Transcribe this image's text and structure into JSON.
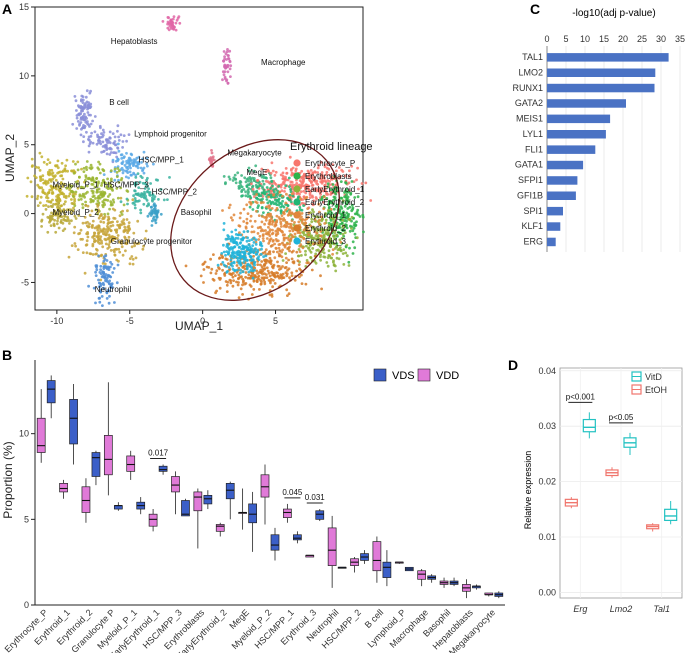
{
  "panels": [
    "A",
    "B",
    "C",
    "D"
  ],
  "chart_data": [
    {
      "type": "scatter",
      "panel": "A",
      "xlabel": "UMAP_1",
      "ylabel": "UMAP_2",
      "xlim": [
        -11.5,
        11
      ],
      "ylim": [
        -7,
        15
      ],
      "xticks": [
        -10,
        -5,
        0,
        5
      ],
      "yticks": [
        -5,
        0,
        5,
        10,
        15
      ],
      "cluster_labels": [
        {
          "text": "Hepatoblasts",
          "x": -6.3,
          "y": 12.3
        },
        {
          "text": "Macrophage",
          "x": 4.0,
          "y": 10.8
        },
        {
          "text": "B cell",
          "x": -6.4,
          "y": 7.9
        },
        {
          "text": "Lymphoid progenitor",
          "x": -4.7,
          "y": 5.6
        },
        {
          "text": "HSC/MPP_1",
          "x": -4.4,
          "y": 3.7
        },
        {
          "text": "Myeloid_P_1",
          "x": -10.3,
          "y": 1.9
        },
        {
          "text": "HSC/MPP_3",
          "x": -6.8,
          "y": 1.9
        },
        {
          "text": "HSC/MPP_2",
          "x": -3.5,
          "y": 1.4
        },
        {
          "text": "Myeloid_P_2",
          "x": -10.3,
          "y": -0.1
        },
        {
          "text": "Basophil",
          "x": -1.5,
          "y": -0.1
        },
        {
          "text": "Granulocyte progenitor",
          "x": -6.3,
          "y": -2.2
        },
        {
          "text": "Neutrophil",
          "x": -7.4,
          "y": -5.7
        },
        {
          "text": "Megakaryocyte",
          "x": 1.7,
          "y": 4.2
        },
        {
          "text": "MegE",
          "x": 3.0,
          "y": 2.8
        }
      ],
      "lineage_label": "Erythroid lineage",
      "legend": [
        "Erythrocyte_P",
        "Erythroblasts",
        "EarlyErythroid_1",
        "EarlyErythroid_2",
        "Erythroid_1",
        "Erythroid_2",
        "Erythroid_3"
      ],
      "legend_colors": [
        "#f8766d",
        "#2db34a",
        "#8db33a",
        "#22b573",
        "#e0873a",
        "#d67b28",
        "#1fb3d9"
      ],
      "clusters": [
        {
          "name": "Hepatoblasts",
          "color": "#e066a6",
          "x": -2.0,
          "y": 13.8,
          "sx": 0.25,
          "sy": 0.25,
          "n": 40
        },
        {
          "name": "Macrophage",
          "color": "#d26ab0",
          "x": 1.7,
          "y": 10.8,
          "sx": 0.15,
          "sy": 0.6,
          "n": 40
        },
        {
          "name": "B cell",
          "color": "#8a8ed8",
          "x": -8.1,
          "y": 7.3,
          "sx": 0.3,
          "sy": 0.7,
          "n": 90
        },
        {
          "name": "Lymphoid progenitor",
          "color": "#8a8ed8",
          "x": -6.5,
          "y": 5.2,
          "sx": 0.7,
          "sy": 0.5,
          "n": 80
        },
        {
          "name": "HSC/MPP_1",
          "color": "#5aa9e6",
          "x": -5.0,
          "y": 3.5,
          "sx": 0.7,
          "sy": 0.5,
          "n": 90
        },
        {
          "name": "Myeloid_P_1",
          "color": "#c3b12e",
          "x": -10.0,
          "y": 2.0,
          "sx": 0.8,
          "sy": 1.0,
          "n": 180
        },
        {
          "name": "HSC/MPP_3",
          "color": "#9ab530",
          "x": -7.2,
          "y": 1.9,
          "sx": 0.9,
          "sy": 0.9,
          "n": 170
        },
        {
          "name": "HSC/MPP_2",
          "color": "#3ab3a0",
          "x": -4.0,
          "y": 1.5,
          "sx": 0.6,
          "sy": 0.6,
          "n": 80
        },
        {
          "name": "Myeloid_P_2",
          "color": "#b8a93a",
          "x": -10.0,
          "y": -0.2,
          "sx": 0.6,
          "sy": 0.5,
          "n": 80
        },
        {
          "name": "Basophil",
          "color": "#3aa0c8",
          "x": -3.3,
          "y": 0.0,
          "sx": 0.2,
          "sy": 0.3,
          "n": 40
        },
        {
          "name": "Granulocyte progenitor",
          "color": "#c7a43a",
          "x": -6.5,
          "y": -1.5,
          "sx": 1.1,
          "sy": 1.1,
          "n": 240
        },
        {
          "name": "Neutrophil",
          "color": "#4f8ed6",
          "x": -6.7,
          "y": -4.5,
          "sx": 0.35,
          "sy": 1.0,
          "n": 90
        },
        {
          "name": "Megakaryocyte",
          "color": "#e2728a",
          "x": 0.6,
          "y": 3.8,
          "sx": 0.1,
          "sy": 0.25,
          "n": 20
        },
        {
          "name": "MegE",
          "color": "#3ab37e",
          "x": 3.3,
          "y": 2.2,
          "sx": 0.8,
          "sy": 0.5,
          "n": 90
        },
        {
          "name": "Erythrocyte_P",
          "color": "#f8766d",
          "x": 7.0,
          "y": 2.2,
          "sx": 1.7,
          "sy": 0.7,
          "n": 320
        },
        {
          "name": "Erythroblasts",
          "color": "#2db34a",
          "x": 9.5,
          "y": 0.0,
          "sx": 0.6,
          "sy": 1.2,
          "n": 200
        },
        {
          "name": "EarlyErythroid_1",
          "color": "#8db33a",
          "x": 8.0,
          "y": -1.8,
          "sx": 1.0,
          "sy": 1.0,
          "n": 240
        },
        {
          "name": "EarlyErythroid_2",
          "color": "#22b573",
          "x": 4.7,
          "y": 1.0,
          "sx": 0.9,
          "sy": 0.6,
          "n": 120
        },
        {
          "name": "Erythroid_1",
          "color": "#e0873a",
          "x": 5.5,
          "y": -1.0,
          "sx": 1.6,
          "sy": 1.0,
          "n": 300
        },
        {
          "name": "Erythroid_2",
          "color": "#d67b28",
          "x": 3.8,
          "y": -4.2,
          "sx": 1.8,
          "sy": 0.8,
          "n": 300
        },
        {
          "name": "Erythroid_3",
          "color": "#1fb3d9",
          "x": 2.7,
          "y": -2.8,
          "sx": 0.7,
          "sy": 0.8,
          "n": 200
        }
      ]
    },
    {
      "type": "box",
      "panel": "B",
      "ylabel": "Proportion (%)",
      "yticks": [
        0,
        5,
        10
      ],
      "ylim": [
        0,
        14.3
      ],
      "legend": [
        "VDS",
        "VDD"
      ],
      "colors": {
        "VDS": "#3b5fc8",
        "VDD": "#e07ad8"
      },
      "categories": [
        "Erythrocyte_P",
        "Erythroid_1",
        "Erythroid_2",
        "Granulocyte P",
        "Myeloid_P_1",
        "EarlyErythroid_1",
        "HSC/MPP_3",
        "Erythroblasts",
        "EarlyErythroid_2",
        "MegE",
        "Myeloid_P_2",
        "HSC/MPP_1",
        "Erythroid_3",
        "Neutrophil",
        "HSC/MPP_2",
        "B cell",
        "Lymphoid_P",
        "Macrophage",
        "Basophil",
        "Hepatoblasts",
        "Megakaryocyte"
      ],
      "annotations": [
        {
          "text": "0.017",
          "category": "EarlyErythroid_1"
        },
        {
          "text": "0.045",
          "category": "HSC/MPP_1"
        },
        {
          "text": "0.031",
          "category": "Erythroid_3"
        }
      ],
      "series": [
        {
          "name": "VDD",
          "boxes": [
            [
              8.3,
              8.9,
              9.3,
              10.9,
              12.6
            ],
            [
              6.2,
              6.6,
              6.8,
              7.1,
              7.3
            ],
            [
              4.8,
              5.4,
              6.1,
              6.9,
              7.4
            ],
            [
              6.4,
              7.6,
              8.5,
              9.9,
              13.0
            ],
            [
              7.3,
              7.8,
              8.2,
              8.7,
              9.0
            ],
            [
              4.3,
              4.6,
              5.0,
              5.3,
              5.6
            ],
            [
              5.3,
              6.6,
              7.0,
              7.5,
              7.8
            ],
            [
              3.3,
              5.5,
              6.3,
              6.6,
              6.8
            ],
            [
              4.0,
              4.3,
              4.6,
              4.7,
              4.8
            ],
            [
              4.4,
              5.4,
              5.4,
              5.4,
              6.8
            ],
            [
              4.7,
              6.3,
              6.9,
              7.6,
              8.2
            ],
            [
              4.8,
              5.1,
              5.4,
              5.6,
              5.9
            ],
            [
              2.8,
              2.8,
              2.9,
              2.9,
              2.9
            ],
            [
              1.0,
              2.3,
              3.2,
              4.5,
              5.2
            ],
            [
              1.9,
              2.3,
              2.5,
              2.7,
              2.8
            ],
            [
              1.3,
              2.0,
              2.6,
              3.7,
              4.0
            ],
            [
              2.4,
              2.5,
              2.5,
              2.5,
              2.5
            ],
            [
              1.1,
              1.5,
              1.8,
              2.0,
              2.1
            ],
            [
              1.0,
              1.2,
              1.3,
              1.4,
              1.6
            ],
            [
              0.4,
              0.8,
              1.0,
              1.2,
              1.5
            ],
            [
              0.5,
              0.6,
              0.6,
              0.7,
              0.7
            ]
          ]
        },
        {
          "name": "VDS",
          "boxes": [
            [
              10.9,
              11.8,
              12.6,
              13.1,
              13.4
            ],
            [
              8.2,
              9.4,
              10.9,
              12.0,
              12.9
            ],
            [
              7.0,
              7.5,
              8.6,
              8.9,
              9.0
            ],
            [
              5.5,
              5.6,
              5.8,
              5.8,
              6.0
            ],
            [
              5.3,
              5.6,
              5.8,
              6.0,
              6.3
            ],
            [
              7.6,
              7.8,
              7.9,
              8.1,
              8.2
            ],
            [
              5.2,
              5.2,
              5.3,
              6.1,
              6.2
            ],
            [
              5.6,
              5.9,
              6.2,
              6.4,
              6.7
            ],
            [
              5.0,
              6.2,
              6.7,
              7.1,
              7.2
            ],
            [
              3.1,
              4.8,
              5.3,
              5.9,
              6.6
            ],
            [
              2.6,
              3.2,
              3.5,
              4.1,
              4.5
            ],
            [
              3.6,
              3.8,
              3.9,
              4.1,
              4.3
            ],
            [
              4.9,
              5.0,
              5.3,
              5.5,
              5.6
            ],
            [
              2.2,
              2.2,
              2.2,
              2.2,
              2.2
            ],
            [
              2.4,
              2.6,
              2.8,
              3.0,
              3.2
            ],
            [
              1.1,
              1.6,
              2.2,
              2.5,
              3.2
            ],
            [
              2.0,
              2.0,
              2.1,
              2.2,
              2.2
            ],
            [
              1.3,
              1.5,
              1.6,
              1.7,
              1.8
            ],
            [
              1.1,
              1.2,
              1.3,
              1.4,
              1.6
            ],
            [
              0.9,
              1.0,
              1.1,
              1.1,
              1.2
            ],
            [
              0.4,
              0.5,
              0.6,
              0.7,
              0.8
            ]
          ]
        }
      ]
    },
    {
      "type": "bar",
      "panel": "C",
      "orientation": "horizontal",
      "xlabel": "-log10(adj p-value)",
      "xticks": [
        0,
        5,
        10,
        15,
        20,
        25,
        30,
        35
      ],
      "xlim": [
        0,
        35
      ],
      "color": "#4a72c4",
      "categories": [
        "TAL1",
        "LMO2",
        "RUNX1",
        "GATA2",
        "MEIS1",
        "LYL1",
        "FLI1",
        "GATA1",
        "SFPI1",
        "GFI1B",
        "SPI1",
        "KLF1",
        "ERG"
      ],
      "values": [
        32.0,
        28.5,
        28.3,
        20.8,
        16.6,
        15.5,
        12.7,
        9.5,
        8.0,
        7.6,
        4.2,
        3.5,
        2.3
      ]
    },
    {
      "type": "box",
      "panel": "D",
      "ylabel": "Relative expression",
      "yticks": [
        "0.00",
        "0.01",
        "0.02",
        "0.03",
        "0.04"
      ],
      "ylim": [
        -0.001,
        0.0405
      ],
      "categories": [
        "Erg",
        "Lmo2",
        "Tal1"
      ],
      "legend": [
        "VitD",
        "EtOH"
      ],
      "colors": {
        "VitD": "#23c2c2",
        "EtOH": "#f0766d"
      },
      "annotations": [
        {
          "text": "p<0.001",
          "category": "Erg"
        },
        {
          "text": "p<0.05",
          "category": "Lmo2"
        }
      ],
      "series": [
        {
          "name": "EtOH",
          "boxes": [
            [
              0.0152,
              0.0156,
              0.0162,
              0.0168,
              0.0172
            ],
            [
              0.0207,
              0.0211,
              0.0216,
              0.0221,
              0.0226
            ],
            [
              0.011,
              0.0115,
              0.0119,
              0.0122,
              0.0125
            ]
          ]
        },
        {
          "name": "VitD",
          "boxes": [
            [
              0.0278,
              0.029,
              0.0298,
              0.0312,
              0.0325
            ],
            [
              0.0248,
              0.0262,
              0.027,
              0.0279,
              0.0288
            ],
            [
              0.0123,
              0.013,
              0.0138,
              0.015,
              0.0165
            ]
          ]
        }
      ]
    }
  ]
}
